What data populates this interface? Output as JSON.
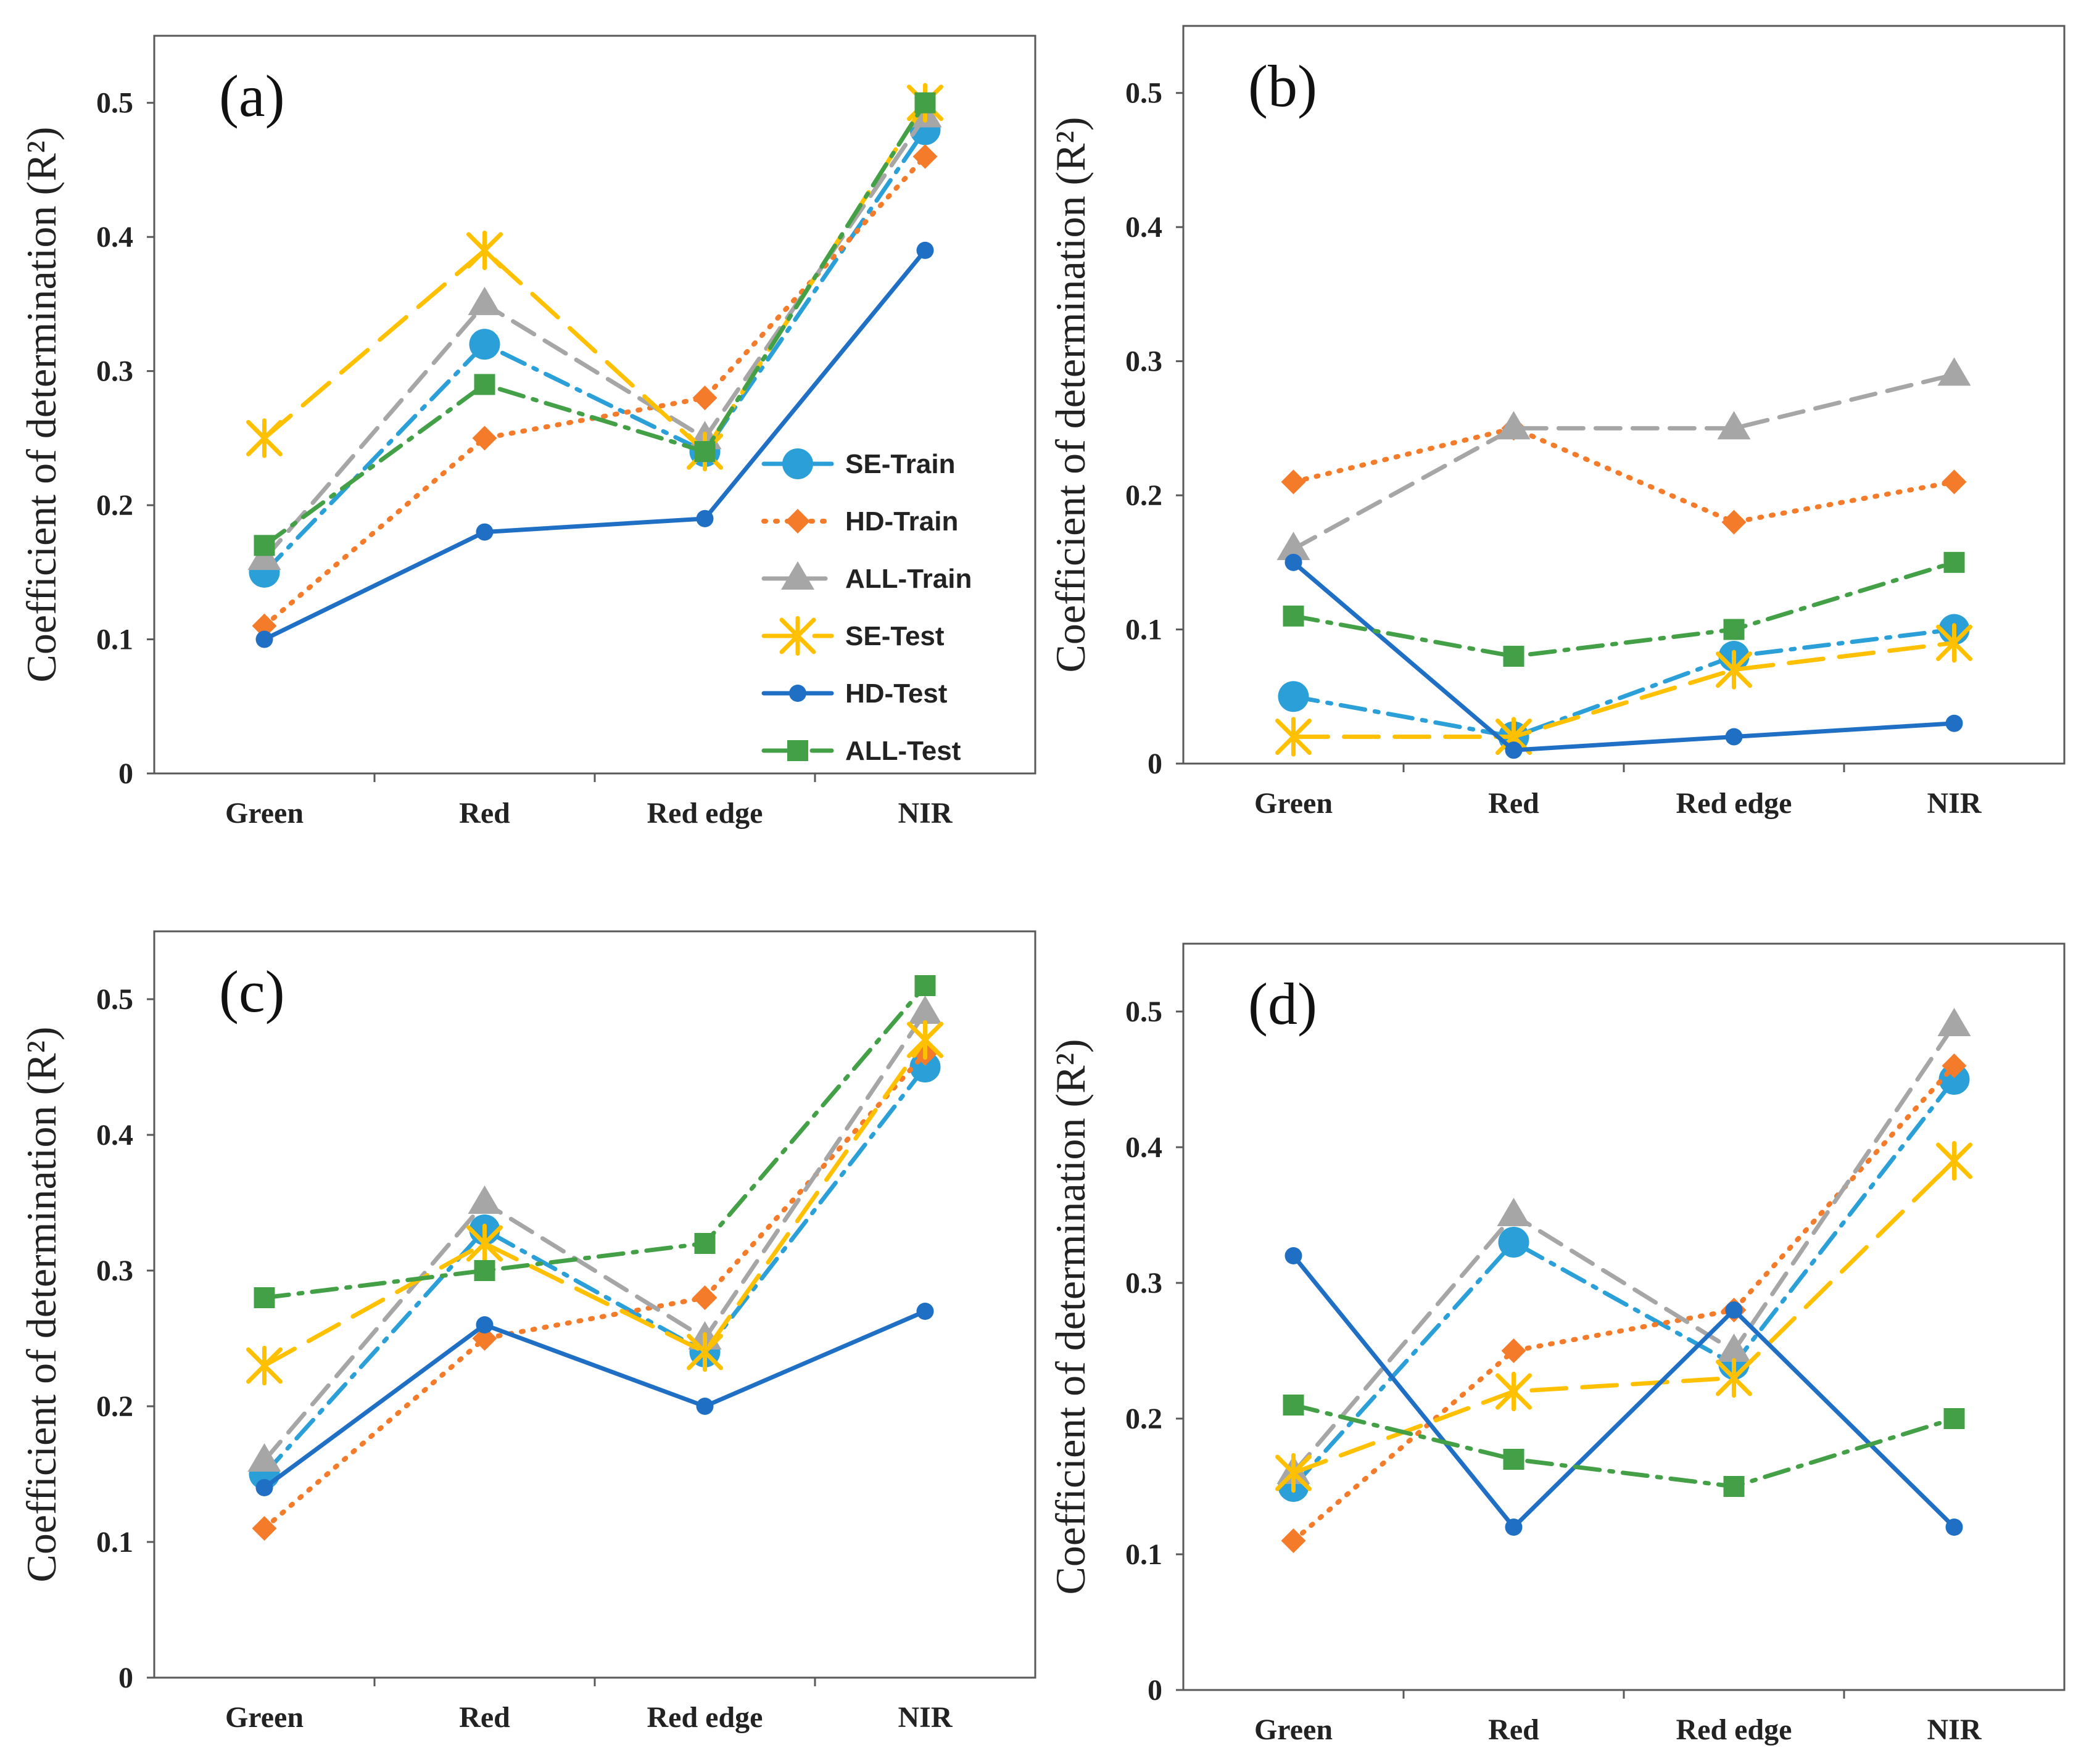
{
  "legend_panel": 0,
  "chart_data": [
    {
      "type": "line",
      "panel_label": "(a)",
      "ylabel": "Coefficient of determination (R²)",
      "ylim": [
        0,
        0.55
      ],
      "yticks": [
        "0",
        "0.1",
        "0.2",
        "0.3",
        "0.4",
        "0.5"
      ],
      "categories": [
        "Green",
        "Red",
        "Red edge",
        "NIR"
      ],
      "series": [
        {
          "name": "SE-Train",
          "color": "#2b9fd8",
          "dash": "dashdot",
          "marker": "circle-large",
          "values": [
            0.15,
            0.32,
            0.24,
            0.48
          ]
        },
        {
          "name": "HD-Train",
          "color": "#f47b2a",
          "dash": "dotted",
          "marker": "diamond",
          "values": [
            0.11,
            0.25,
            0.28,
            0.46
          ]
        },
        {
          "name": "ALL-Train",
          "color": "#a6a6a6",
          "dash": "dash",
          "marker": "triangle",
          "values": [
            0.16,
            0.35,
            0.25,
            0.49
          ]
        },
        {
          "name": "SE-Test",
          "color": "#ffc000",
          "dash": "longdash",
          "marker": "asterisk",
          "values": [
            0.25,
            0.39,
            0.24,
            0.5
          ]
        },
        {
          "name": "HD-Test",
          "color": "#1f6fc5",
          "dash": "solid",
          "marker": "circle",
          "values": [
            0.1,
            0.18,
            0.19,
            0.39
          ]
        },
        {
          "name": "ALL-Test",
          "color": "#43a047",
          "dash": "dashdot",
          "marker": "square",
          "values": [
            0.17,
            0.29,
            0.24,
            0.5
          ]
        }
      ]
    },
    {
      "type": "line",
      "panel_label": "(b)",
      "ylabel": "Coefficient of determination (R²)",
      "ylim": [
        0,
        0.55
      ],
      "yticks": [
        "0",
        "0.1",
        "0.2",
        "0.3",
        "0.4",
        "0.5"
      ],
      "categories": [
        "Green",
        "Red",
        "Red edge",
        "NIR"
      ],
      "series": [
        {
          "name": "SE-Train",
          "color": "#2b9fd8",
          "dash": "dashdot",
          "marker": "circle-large",
          "values": [
            0.05,
            0.02,
            0.08,
            0.1
          ]
        },
        {
          "name": "HD-Train",
          "color": "#f47b2a",
          "dash": "dotted",
          "marker": "diamond",
          "values": [
            0.21,
            0.25,
            0.18,
            0.21
          ]
        },
        {
          "name": "ALL-Train",
          "color": "#a6a6a6",
          "dash": "dash",
          "marker": "triangle",
          "values": [
            0.16,
            0.25,
            0.25,
            0.29
          ]
        },
        {
          "name": "SE-Test",
          "color": "#ffc000",
          "dash": "longdash",
          "marker": "asterisk",
          "values": [
            0.02,
            0.02,
            0.07,
            0.09
          ]
        },
        {
          "name": "HD-Test",
          "color": "#1f6fc5",
          "dash": "solid",
          "marker": "circle",
          "values": [
            0.15,
            0.01,
            0.02,
            0.03
          ]
        },
        {
          "name": "ALL-Test",
          "color": "#43a047",
          "dash": "dashdot",
          "marker": "square",
          "values": [
            0.11,
            0.08,
            0.1,
            0.15
          ]
        }
      ]
    },
    {
      "type": "line",
      "panel_label": "(c)",
      "ylabel": "Coefficient of determination (R²)",
      "ylim": [
        0,
        0.55
      ],
      "yticks": [
        "0",
        "0.1",
        "0.2",
        "0.3",
        "0.4",
        "0.5"
      ],
      "categories": [
        "Green",
        "Red",
        "Red edge",
        "NIR"
      ],
      "series": [
        {
          "name": "SE-Train",
          "color": "#2b9fd8",
          "dash": "dashdot",
          "marker": "circle-large",
          "values": [
            0.15,
            0.33,
            0.24,
            0.45
          ]
        },
        {
          "name": "HD-Train",
          "color": "#f47b2a",
          "dash": "dotted",
          "marker": "diamond",
          "values": [
            0.11,
            0.25,
            0.28,
            0.46
          ]
        },
        {
          "name": "ALL-Train",
          "color": "#a6a6a6",
          "dash": "dash",
          "marker": "triangle",
          "values": [
            0.16,
            0.35,
            0.25,
            0.49
          ]
        },
        {
          "name": "SE-Test",
          "color": "#ffc000",
          "dash": "longdash",
          "marker": "asterisk",
          "values": [
            0.23,
            0.32,
            0.24,
            0.47
          ]
        },
        {
          "name": "HD-Test",
          "color": "#1f6fc5",
          "dash": "solid",
          "marker": "circle",
          "values": [
            0.14,
            0.26,
            0.2,
            0.27
          ]
        },
        {
          "name": "ALL-Test",
          "color": "#43a047",
          "dash": "dashdot",
          "marker": "square",
          "values": [
            0.28,
            0.3,
            0.32,
            0.51
          ]
        }
      ]
    },
    {
      "type": "line",
      "panel_label": "(d)",
      "ylabel": "Coefficient of determination (R²)",
      "ylim": [
        0,
        0.55
      ],
      "yticks": [
        "0",
        "0.1",
        "0.2",
        "0.3",
        "0.4",
        "0.5"
      ],
      "categories": [
        "Green",
        "Red",
        "Red edge",
        "NIR"
      ],
      "series": [
        {
          "name": "SE-Train",
          "color": "#2b9fd8",
          "dash": "dashdot",
          "marker": "circle-large",
          "values": [
            0.15,
            0.33,
            0.24,
            0.45
          ]
        },
        {
          "name": "HD-Train",
          "color": "#f47b2a",
          "dash": "dotted",
          "marker": "diamond",
          "values": [
            0.11,
            0.25,
            0.28,
            0.46
          ]
        },
        {
          "name": "ALL-Train",
          "color": "#a6a6a6",
          "dash": "dash",
          "marker": "triangle",
          "values": [
            0.16,
            0.35,
            0.25,
            0.49
          ]
        },
        {
          "name": "SE-Test",
          "color": "#ffc000",
          "dash": "longdash",
          "marker": "asterisk",
          "values": [
            0.16,
            0.22,
            0.23,
            0.39
          ]
        },
        {
          "name": "HD-Test",
          "color": "#1f6fc5",
          "dash": "solid",
          "marker": "circle",
          "values": [
            0.32,
            0.12,
            0.28,
            0.12
          ]
        },
        {
          "name": "ALL-Test",
          "color": "#43a047",
          "dash": "dashdot",
          "marker": "square",
          "values": [
            0.21,
            0.17,
            0.15,
            0.2
          ]
        }
      ]
    }
  ]
}
